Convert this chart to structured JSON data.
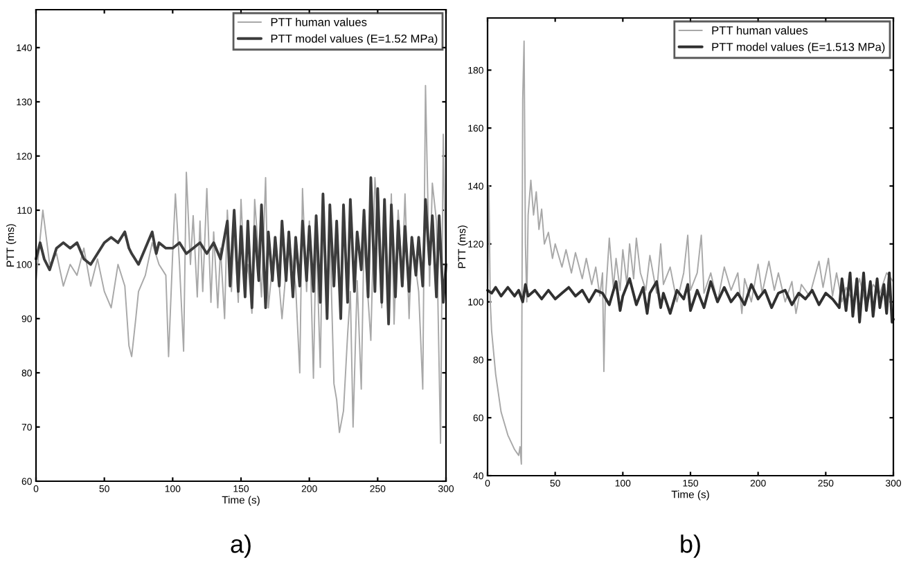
{
  "chart_data": [
    {
      "type": "line",
      "xlabel": "Time (s)",
      "ylabel": "PTT (ms)",
      "annotations": [
        "a)"
      ],
      "legend": "top right",
      "grid": false,
      "xlim": [
        0,
        300
      ],
      "ylim": [
        60,
        147
      ],
      "xticks": [
        0,
        50,
        100,
        150,
        200,
        250,
        300
      ],
      "yticks": [
        60,
        70,
        80,
        90,
        100,
        110,
        120,
        130,
        140
      ],
      "series": [
        {
          "name": "PTT human values",
          "color": "#a8a8a8",
          "x": [
            0,
            5,
            10,
            15,
            20,
            25,
            30,
            35,
            40,
            45,
            50,
            55,
            60,
            65,
            68,
            70,
            73,
            75,
            80,
            85,
            90,
            95,
            97,
            100,
            102,
            105,
            108,
            110,
            113,
            115,
            118,
            120,
            122,
            125,
            128,
            130,
            133,
            135,
            138,
            140,
            143,
            145,
            148,
            150,
            153,
            155,
            158,
            160,
            165,
            168,
            170,
            175,
            180,
            185,
            190,
            193,
            195,
            198,
            200,
            203,
            205,
            208,
            210,
            213,
            215,
            218,
            220,
            222,
            225,
            228,
            230,
            232,
            235,
            238,
            240,
            245,
            248,
            250,
            253,
            255,
            258,
            260,
            262,
            265,
            268,
            270,
            273,
            275,
            278,
            280,
            283,
            285,
            288,
            290,
            293,
            296,
            298,
            300
          ],
          "values": [
            97,
            110,
            100,
            102,
            96,
            100,
            98,
            103,
            96,
            101,
            95,
            92,
            100,
            96,
            85,
            83,
            90,
            95,
            98,
            104,
            100,
            98,
            83,
            102,
            113,
            100,
            84,
            117,
            100,
            109,
            94,
            108,
            95,
            114,
            93,
            106,
            92,
            103,
            90,
            110,
            95,
            106,
            93,
            112,
            96,
            100,
            91,
            112,
            94,
            116,
            92,
            105,
            90,
            105,
            96,
            80,
            114,
            95,
            108,
            79,
            106,
            81,
            110,
            90,
            106,
            78,
            75,
            69,
            73,
            87,
            95,
            70,
            97,
            77,
            105,
            86,
            116,
            108,
            92,
            109,
            95,
            113,
            89,
            110,
            98,
            113,
            90,
            105,
            99,
            95,
            77,
            133,
            96,
            115,
            108,
            67,
            124,
            95
          ]
        },
        {
          "name": "PTT model values (E=1.52 MPa)",
          "color": "#3c3c3c",
          "x": [
            0,
            3,
            6,
            10,
            15,
            20,
            25,
            30,
            35,
            40,
            45,
            50,
            55,
            60,
            65,
            68,
            70,
            75,
            80,
            85,
            88,
            90,
            95,
            100,
            105,
            110,
            115,
            120,
            125,
            130,
            135,
            140,
            142,
            145,
            148,
            150,
            153,
            155,
            158,
            160,
            163,
            165,
            168,
            170,
            173,
            175,
            178,
            180,
            183,
            185,
            188,
            190,
            193,
            195,
            198,
            200,
            203,
            205,
            208,
            210,
            213,
            215,
            218,
            220,
            223,
            225,
            228,
            230,
            233,
            235,
            238,
            240,
            243,
            245,
            248,
            250,
            253,
            255,
            258,
            260,
            263,
            265,
            268,
            270,
            273,
            275,
            278,
            280,
            283,
            285,
            288,
            290,
            293,
            295,
            298,
            300
          ],
          "values": [
            101,
            104,
            101,
            99,
            103,
            104,
            103,
            104,
            101,
            100,
            102,
            104,
            105,
            104,
            106,
            103,
            102,
            100,
            103,
            106,
            102,
            104,
            103,
            103,
            104,
            102,
            103,
            104,
            102,
            104,
            101,
            108,
            96,
            110,
            95,
            107,
            94,
            108,
            92,
            107,
            97,
            111,
            92,
            106,
            97,
            105,
            96,
            108,
            97,
            106,
            94,
            105,
            96,
            108,
            97,
            107,
            95,
            109,
            93,
            113,
            90,
            111,
            96,
            108,
            90,
            111,
            93,
            112,
            95,
            106,
            99,
            110,
            94,
            116,
            95,
            114,
            93,
            112,
            89,
            111,
            94,
            108,
            96,
            107,
            95,
            105,
            98,
            105,
            96,
            112,
            100,
            109,
            94,
            109,
            93,
            100
          ]
        }
      ]
    },
    {
      "type": "line",
      "xlabel": "Time (s)",
      "ylabel": "PTT (ms)",
      "annotations": [
        "b)"
      ],
      "legend": "top right",
      "grid": false,
      "xlim": [
        0,
        300
      ],
      "ylim": [
        40,
        198
      ],
      "xticks": [
        0,
        50,
        100,
        150,
        200,
        250,
        300
      ],
      "yticks": [
        40,
        60,
        80,
        100,
        120,
        140,
        160,
        180
      ],
      "series": [
        {
          "name": "PTT human values",
          "color": "#a8a8a8",
          "x": [
            0,
            1,
            2,
            3,
            6,
            10,
            15,
            20,
            23,
            24,
            25,
            26,
            27,
            28,
            29,
            30,
            32,
            34,
            36,
            38,
            40,
            42,
            45,
            48,
            50,
            55,
            58,
            62,
            65,
            70,
            73,
            77,
            80,
            83,
            85,
            86,
            87,
            90,
            93,
            95,
            98,
            100,
            103,
            105,
            108,
            110,
            113,
            117,
            120,
            125,
            128,
            130,
            135,
            140,
            145,
            148,
            150,
            155,
            158,
            160,
            165,
            170,
            175,
            180,
            185,
            188,
            190,
            195,
            200,
            203,
            208,
            212,
            215,
            220,
            225,
            228,
            232,
            238,
            245,
            248,
            252,
            255,
            258,
            262,
            265,
            270,
            275,
            280,
            285,
            290,
            295,
            300
          ],
          "values": [
            104,
            140,
            100,
            90,
            75,
            62,
            54,
            49,
            47,
            50,
            44,
            170,
            190,
            120,
            100,
            130,
            142,
            130,
            138,
            125,
            132,
            120,
            124,
            115,
            120,
            112,
            118,
            110,
            117,
            108,
            115,
            106,
            112,
            102,
            110,
            76,
            100,
            122,
            105,
            115,
            104,
            118,
            106,
            120,
            108,
            122,
            110,
            104,
            116,
            103,
            120,
            106,
            112,
            100,
            110,
            123,
            104,
            110,
            123,
            103,
            110,
            100,
            112,
            104,
            110,
            96,
            108,
            100,
            113,
            103,
            114,
            104,
            110,
            100,
            107,
            96,
            106,
            102,
            114,
            105,
            115,
            102,
            110,
            100,
            105,
            100,
            108,
            98,
            106,
            103,
            110,
            107
          ]
        },
        {
          "name": "PTT model values (E=1.513 MPa)",
          "color": "#303030",
          "x": [
            0,
            3,
            6,
            10,
            15,
            20,
            23,
            26,
            28,
            30,
            35,
            40,
            45,
            50,
            55,
            60,
            65,
            70,
            75,
            80,
            85,
            90,
            95,
            98,
            100,
            105,
            110,
            115,
            118,
            120,
            125,
            128,
            130,
            135,
            140,
            145,
            148,
            150,
            155,
            160,
            165,
            170,
            175,
            180,
            185,
            190,
            195,
            200,
            205,
            210,
            215,
            220,
            225,
            230,
            235,
            240,
            245,
            250,
            255,
            260,
            262,
            265,
            268,
            270,
            273,
            275,
            278,
            280,
            283,
            285,
            288,
            290,
            293,
            295,
            297,
            299,
            300
          ],
          "values": [
            104,
            103,
            105,
            102,
            105,
            102,
            104,
            100,
            106,
            102,
            104,
            101,
            104,
            101,
            103,
            105,
            102,
            104,
            100,
            104,
            103,
            99,
            107,
            97,
            102,
            108,
            99,
            105,
            96,
            103,
            107,
            98,
            103,
            96,
            104,
            101,
            106,
            97,
            104,
            98,
            107,
            100,
            105,
            100,
            103,
            99,
            106,
            101,
            104,
            98,
            103,
            104,
            99,
            103,
            101,
            104,
            99,
            103,
            101,
            98,
            108,
            97,
            110,
            95,
            108,
            93,
            110,
            97,
            107,
            95,
            108,
            98,
            106,
            96,
            110,
            93,
            94
          ]
        }
      ]
    }
  ]
}
